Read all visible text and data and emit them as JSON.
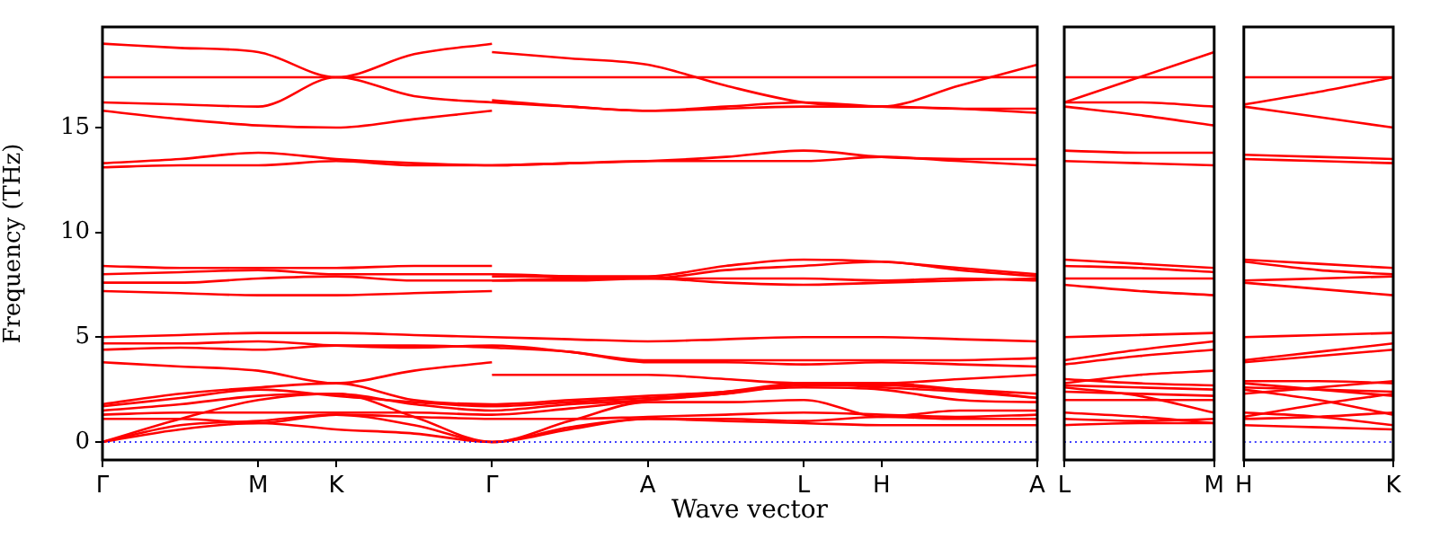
{
  "chart_data": [
    {
      "type": "line",
      "xlabel": "Wave vector",
      "ylabel": "Frequency (THz)",
      "color": "#ff0000",
      "marker": "none",
      "grid": false,
      "categories": [
        "Γ",
        null,
        "M",
        "K",
        null,
        "Γ",
        null,
        "A",
        null,
        "L",
        "H",
        null,
        "A"
      ],
      "ylim": [
        -0.86,
        19.8
      ],
      "yticks": [
        0,
        5,
        10,
        15
      ],
      "ref_lines": [
        {
          "axis": "y",
          "value": 0,
          "color": "#0000ff",
          "line_style": "dotted"
        }
      ],
      "series": [
        {
          "values": [
            0,
            0.6,
            0.9,
            0.6,
            0.4,
            0,
            0.6,
            1.1,
            1.0,
            0.9,
            0.8,
            0.8,
            0.8
          ]
        },
        {
          "values": [
            0,
            0.8,
            1.0,
            1.3,
            0.8,
            0,
            0.7,
            1.1,
            1.1,
            1.0,
            1.2,
            1.1,
            1.1
          ]
        },
        {
          "values": [
            0,
            1.1,
            2.0,
            2.3,
            1.2,
            0,
            1.0,
            1.9,
            1.9,
            2.0,
            1.2,
            1.5,
            1.5
          ]
        },
        {
          "values": [
            1.1,
            1.1,
            0.9,
            1.3,
            1.2,
            1.1,
            1.1,
            1.2,
            1.3,
            1.4,
            1.3,
            1.2,
            1.3
          ]
        },
        {
          "values": [
            1.3,
            1.4,
            1.4,
            1.4,
            1.4,
            1.3,
            1.6,
            2.0,
            2.4,
            2.6,
            2.5,
            2.0,
            1.9
          ]
        },
        {
          "values": [
            1.5,
            1.8,
            2.2,
            2.3,
            1.8,
            1.5,
            1.8,
            2.0,
            2.3,
            2.8,
            2.6,
            2.4,
            2.1
          ]
        },
        {
          "values": [
            1.7,
            2.1,
            2.5,
            2.2,
            1.9,
            1.7,
            1.9,
            2.1,
            2.3,
            2.7,
            2.7,
            2.5,
            2.3
          ]
        },
        {
          "values": [
            1.8,
            2.3,
            2.6,
            2.8,
            2.0,
            1.8,
            2.0,
            2.2,
            2.4,
            2.8,
            2.8,
            3.0,
            3.2
          ]
        },
        {
          "values": [
            3.8,
            3.6,
            3.4,
            2.8,
            3.4,
            3.8,
            null,
            null,
            null,
            null,
            null,
            null,
            null
          ]
        },
        {
          "values": [
            null,
            null,
            null,
            null,
            null,
            3.2,
            3.2,
            3.2,
            3.0,
            2.8,
            2.8,
            2.5,
            2.1
          ]
        },
        {
          "values": [
            4.4,
            4.5,
            4.4,
            4.6,
            4.6,
            4.5,
            4.3,
            3.8,
            3.8,
            3.7,
            3.8,
            3.7,
            3.6
          ]
        },
        {
          "values": [
            4.7,
            4.7,
            4.8,
            4.6,
            4.5,
            4.6,
            4.3,
            3.9,
            3.9,
            3.9,
            3.9,
            3.9,
            4.0
          ]
        },
        {
          "values": [
            5.0,
            5.1,
            5.2,
            5.2,
            5.1,
            5.0,
            4.9,
            4.8,
            4.9,
            5.0,
            5.0,
            4.9,
            4.8
          ]
        },
        {
          "values": [
            7.2,
            7.1,
            7.0,
            7.0,
            7.1,
            7.2,
            null,
            null,
            null,
            null,
            null,
            null,
            null
          ]
        },
        {
          "values": [
            null,
            null,
            null,
            null,
            null,
            7.7,
            7.7,
            7.8,
            7.6,
            7.5,
            7.6,
            7.7,
            7.8
          ]
        },
        {
          "values": [
            7.6,
            7.6,
            7.8,
            7.9,
            7.7,
            7.7,
            7.8,
            7.8,
            7.8,
            7.8,
            7.7,
            7.8,
            7.7
          ]
        },
        {
          "values": [
            8.0,
            8.1,
            8.2,
            8.0,
            8.0,
            8.0,
            7.9,
            7.8,
            8.2,
            8.4,
            8.6,
            8.2,
            7.9
          ]
        },
        {
          "values": [
            8.4,
            8.3,
            8.3,
            8.3,
            8.4,
            8.4,
            null,
            null,
            null,
            null,
            null,
            null,
            null
          ]
        },
        {
          "values": [
            null,
            null,
            null,
            null,
            null,
            7.9,
            7.9,
            7.9,
            8.4,
            8.7,
            8.6,
            8.3,
            8.0
          ]
        },
        {
          "values": [
            13.1,
            13.2,
            13.2,
            13.4,
            13.2,
            13.2,
            13.3,
            13.4,
            13.4,
            13.4,
            13.6,
            13.4,
            13.2
          ]
        },
        {
          "values": [
            13.3,
            13.5,
            13.8,
            13.5,
            13.3,
            13.2,
            13.3,
            13.4,
            13.6,
            13.9,
            13.6,
            13.5,
            13.5
          ]
        },
        {
          "values": [
            15.8,
            15.4,
            15.1,
            15.0,
            15.4,
            15.8,
            null,
            null,
            null,
            null,
            null,
            null,
            null
          ]
        },
        {
          "values": [
            null,
            null,
            null,
            null,
            null,
            16.3,
            16.0,
            15.8,
            15.9,
            16.0,
            16.0,
            15.9,
            15.9
          ]
        },
        {
          "values": [
            16.2,
            16.1,
            16.0,
            17.4,
            16.5,
            16.2,
            16.0,
            15.8,
            16.0,
            16.2,
            16.0,
            15.9,
            15.7
          ]
        },
        {
          "values": [
            17.4,
            17.4,
            17.4,
            17.4,
            17.4,
            17.4,
            17.4,
            17.4,
            17.4,
            17.4,
            17.4,
            17.4,
            17.4
          ]
        },
        {
          "values": [
            19.0,
            18.8,
            18.6,
            17.4,
            18.5,
            19.0,
            null,
            null,
            null,
            null,
            null,
            null,
            null
          ]
        },
        {
          "values": [
            null,
            null,
            null,
            null,
            null,
            18.6,
            18.3,
            18.0,
            17.0,
            16.2,
            16.0,
            17.0,
            18.0
          ]
        }
      ]
    },
    {
      "type": "line",
      "color": "#ff0000",
      "marker": "none",
      "grid": false,
      "tick_labels": "x",
      "categories": [
        "L",
        null,
        "M"
      ],
      "ylim": [
        -0.86,
        19.8
      ],
      "ref_lines": [
        {
          "axis": "y",
          "value": 0,
          "color": "#0000ff",
          "line_style": "dotted"
        }
      ],
      "series": [
        {
          "values": [
            0.8,
            0.9,
            0.9
          ]
        },
        {
          "values": [
            1.1,
            1.0,
            1.1
          ]
        },
        {
          "values": [
            2.0,
            2.0,
            2.0
          ]
        },
        {
          "values": [
            1.4,
            1.2,
            0.9
          ]
        },
        {
          "values": [
            2.6,
            2.2,
            1.4
          ]
        },
        {
          "values": [
            2.4,
            2.3,
            2.2
          ]
        },
        {
          "values": [
            2.7,
            2.6,
            2.5
          ]
        },
        {
          "values": [
            3.0,
            2.8,
            2.7
          ]
        },
        {
          "values": [
            2.8,
            3.2,
            3.4
          ]
        },
        {
          "values": [
            3.7,
            4.1,
            4.4
          ]
        },
        {
          "values": [
            3.9,
            4.4,
            4.8
          ]
        },
        {
          "values": [
            5.0,
            5.1,
            5.2
          ]
        },
        {
          "values": [
            7.5,
            7.2,
            7.0
          ]
        },
        {
          "values": [
            7.8,
            7.8,
            7.8
          ]
        },
        {
          "values": [
            8.4,
            8.3,
            8.1
          ]
        },
        {
          "values": [
            8.7,
            8.5,
            8.3
          ]
        },
        {
          "values": [
            13.4,
            13.3,
            13.2
          ]
        },
        {
          "values": [
            13.9,
            13.8,
            13.8
          ]
        },
        {
          "values": [
            16.0,
            15.6,
            15.1
          ]
        },
        {
          "values": [
            16.2,
            16.2,
            16.0
          ]
        },
        {
          "values": [
            17.4,
            17.4,
            17.4
          ]
        },
        {
          "values": [
            16.2,
            17.4,
            18.6
          ]
        }
      ]
    },
    {
      "type": "line",
      "color": "#ff0000",
      "marker": "none",
      "grid": false,
      "tick_labels": "x",
      "categories": [
        "H",
        null,
        "K"
      ],
      "ylim": [
        -0.86,
        19.8
      ],
      "ref_lines": [
        {
          "axis": "y",
          "value": 0,
          "color": "#0000ff",
          "line_style": "dotted"
        }
      ],
      "series": [
        {
          "values": [
            0.8,
            0.7,
            0.6
          ]
        },
        {
          "values": [
            1.1,
            1.2,
            1.4
          ]
        },
        {
          "values": [
            1.2,
            1.8,
            2.3
          ]
        },
        {
          "values": [
            1.4,
            1.2,
            0.8
          ]
        },
        {
          "values": [
            2.5,
            2.0,
            1.3
          ]
        },
        {
          "values": [
            2.6,
            2.5,
            2.4
          ]
        },
        {
          "values": [
            2.8,
            2.5,
            2.2
          ]
        },
        {
          "values": [
            2.9,
            2.9,
            2.8
          ]
        },
        {
          "values": [
            2.3,
            2.6,
            2.9
          ]
        },
        {
          "values": [
            3.8,
            4.1,
            4.4
          ]
        },
        {
          "values": [
            3.9,
            4.3,
            4.7
          ]
        },
        {
          "values": [
            5.0,
            5.1,
            5.2
          ]
        },
        {
          "values": [
            7.6,
            7.3,
            7.0
          ]
        },
        {
          "values": [
            7.7,
            7.8,
            7.9
          ]
        },
        {
          "values": [
            8.6,
            8.2,
            8.0
          ]
        },
        {
          "values": [
            8.7,
            8.5,
            8.3
          ]
        },
        {
          "values": [
            13.5,
            13.4,
            13.3
          ]
        },
        {
          "values": [
            13.7,
            13.6,
            13.5
          ]
        },
        {
          "values": [
            16.0,
            15.5,
            15.0
          ]
        },
        {
          "values": [
            16.1,
            16.7,
            17.4
          ]
        },
        {
          "values": [
            17.4,
            17.4,
            17.4
          ]
        }
      ]
    }
  ]
}
